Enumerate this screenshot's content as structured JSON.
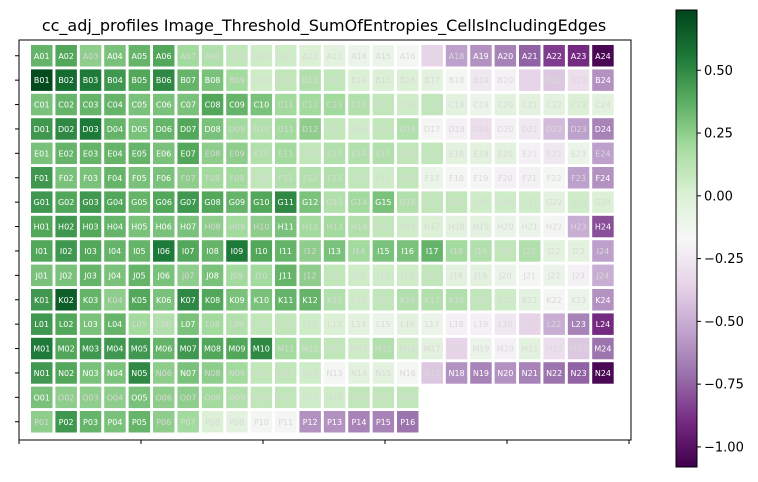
{
  "chart_data": {
    "type": "heatmap",
    "title": "cc_adj_profiles Image_Threshold_SumOfEntropies_CellsIncludingEdges",
    "xlabel": "",
    "ylabel": "",
    "rows": [
      "A",
      "B",
      "C",
      "D",
      "E",
      "F",
      "G",
      "H",
      "I",
      "J",
      "K",
      "L",
      "M",
      "N",
      "O",
      "P"
    ],
    "cols": [
      "01",
      "02",
      "03",
      "04",
      "05",
      "06",
      "07",
      "08",
      "09",
      "10",
      "11",
      "12",
      "13",
      "14",
      "15",
      "16",
      "17",
      "18",
      "19",
      "20",
      "21",
      "22",
      "23",
      "24"
    ],
    "colorbar": {
      "colormap": "PRGn",
      "vmin": -1.08,
      "vmax": 0.74,
      "ticks": [
        0.5,
        0.25,
        0.0,
        -0.25,
        -0.5,
        -0.75,
        -1.0
      ],
      "tick_labels": [
        "0.50",
        "0.25",
        "0.00",
        "−0.25",
        "−0.50",
        "−0.75",
        "−1.00"
      ]
    },
    "missing_wells": [
      "P17",
      "P18",
      "P19",
      "P20",
      "P21",
      "P22",
      "P23",
      "P24",
      "O17",
      "O18",
      "O19",
      "O20",
      "O21",
      "O22",
      "O23",
      "O24"
    ],
    "values": [
      [
        0.35,
        0.4,
        0.25,
        0.3,
        0.35,
        0.4,
        0.2,
        0.15,
        0.1,
        0.05,
        0.05,
        0.0,
        -0.05,
        -0.1,
        -0.1,
        -0.15,
        -0.35,
        -0.55,
        -0.6,
        -0.65,
        -0.75,
        -0.85,
        -0.9,
        -1.05
      ],
      [
        0.72,
        0.6,
        0.55,
        0.45,
        0.4,
        0.5,
        0.35,
        0.3,
        0.2,
        0.05,
        0.1,
        0.15,
        0.1,
        0.0,
        0.0,
        0.0,
        -0.05,
        -0.15,
        -0.25,
        -0.2,
        -0.35,
        -0.4,
        -0.3,
        -0.6
      ],
      [
        0.3,
        0.35,
        0.35,
        0.35,
        0.3,
        0.3,
        0.3,
        0.4,
        0.35,
        0.3,
        0.2,
        0.2,
        0.2,
        0.15,
        0.1,
        0.05,
        0.1,
        -0.05,
        -0.1,
        -0.05,
        -0.05,
        -0.05,
        0.0,
        -0.05
      ],
      [
        0.45,
        0.5,
        0.55,
        0.35,
        0.3,
        0.35,
        0.4,
        0.3,
        0.2,
        0.15,
        0.2,
        0.25,
        0.1,
        0.05,
        0.1,
        0.15,
        -0.15,
        -0.2,
        -0.3,
        -0.2,
        -0.25,
        -0.45,
        -0.55,
        -0.65
      ],
      [
        0.3,
        0.35,
        0.35,
        0.35,
        0.35,
        0.3,
        0.4,
        0.25,
        0.25,
        0.15,
        0.2,
        0.1,
        0.15,
        0.15,
        0.15,
        0.1,
        0.1,
        -0.05,
        -0.05,
        -0.05,
        -0.2,
        -0.25,
        -0.1,
        -0.55
      ],
      [
        0.45,
        0.3,
        0.3,
        0.35,
        0.3,
        0.3,
        0.25,
        0.2,
        0.2,
        0.1,
        0.15,
        0.15,
        0.15,
        0.1,
        0.05,
        0.1,
        -0.1,
        -0.15,
        -0.15,
        -0.2,
        -0.2,
        -0.15,
        -0.55,
        -0.6
      ],
      [
        0.45,
        0.4,
        0.45,
        0.4,
        0.35,
        0.4,
        0.45,
        0.4,
        0.35,
        0.4,
        0.5,
        0.3,
        0.15,
        0.2,
        0.3,
        0.15,
        0.1,
        0.1,
        0.05,
        0.05,
        0.05,
        -0.05,
        0.05,
        0.0
      ],
      [
        0.4,
        0.45,
        0.4,
        0.35,
        0.3,
        0.3,
        0.3,
        0.25,
        0.2,
        0.25,
        0.3,
        0.2,
        0.2,
        0.15,
        0.1,
        0.05,
        0.0,
        -0.05,
        -0.05,
        -0.1,
        -0.1,
        -0.15,
        -0.5,
        -0.8
      ],
      [
        0.4,
        0.45,
        0.4,
        0.35,
        0.35,
        0.55,
        0.4,
        0.35,
        0.55,
        0.4,
        0.35,
        0.25,
        0.3,
        0.2,
        0.3,
        0.3,
        0.35,
        0.2,
        0.15,
        0.1,
        0.15,
        -0.05,
        -0.05,
        -0.55
      ],
      [
        0.3,
        0.3,
        0.35,
        0.3,
        0.35,
        0.3,
        0.25,
        0.3,
        0.2,
        0.2,
        0.35,
        0.25,
        0.1,
        0.05,
        0.05,
        0.05,
        0.1,
        -0.05,
        -0.05,
        -0.1,
        -0.15,
        -0.1,
        -0.2,
        -0.5
      ],
      [
        0.45,
        0.65,
        0.35,
        0.25,
        0.4,
        0.3,
        0.5,
        0.4,
        0.3,
        0.3,
        0.35,
        0.35,
        0.15,
        0.05,
        0.1,
        0.15,
        0.15,
        0.15,
        0.1,
        0.05,
        -0.05,
        -0.15,
        -0.1,
        -0.6
      ],
      [
        0.45,
        0.4,
        0.3,
        0.35,
        0.2,
        0.15,
        0.3,
        0.2,
        0.15,
        0.1,
        0.1,
        0.05,
        0.0,
        -0.05,
        -0.1,
        -0.05,
        -0.1,
        -0.2,
        -0.2,
        -0.25,
        -0.35,
        -0.5,
        -0.65,
        -0.9
      ],
      [
        0.55,
        0.4,
        0.45,
        0.45,
        0.45,
        0.35,
        0.45,
        0.4,
        0.4,
        0.5,
        0.2,
        0.15,
        0.1,
        0.05,
        0.15,
        0.05,
        -0.05,
        -0.35,
        -0.1,
        -0.2,
        -0.05,
        -0.3,
        -0.4,
        -0.7
      ],
      [
        0.45,
        0.4,
        0.3,
        0.3,
        0.5,
        0.25,
        0.3,
        0.25,
        0.2,
        0.1,
        0.1,
        0.05,
        -0.15,
        -0.05,
        -0.05,
        -0.15,
        -0.4,
        -0.6,
        -0.65,
        -0.6,
        -0.65,
        -0.7,
        -0.75,
        -1.05
      ],
      [
        0.3,
        0.25,
        0.25,
        0.25,
        0.3,
        0.25,
        0.25,
        0.2,
        0.15,
        0.1,
        0.1,
        0.05,
        0.05,
        0.1,
        0.1,
        0.1,
        null,
        null,
        null,
        null,
        null,
        null,
        null,
        null
      ],
      [
        0.25,
        0.45,
        0.35,
        0.3,
        0.35,
        0.25,
        0.2,
        0.0,
        -0.05,
        -0.15,
        -0.15,
        -0.6,
        -0.6,
        -0.65,
        -0.65,
        -0.7,
        null,
        null,
        null,
        null,
        null,
        null,
        null,
        null
      ]
    ]
  }
}
